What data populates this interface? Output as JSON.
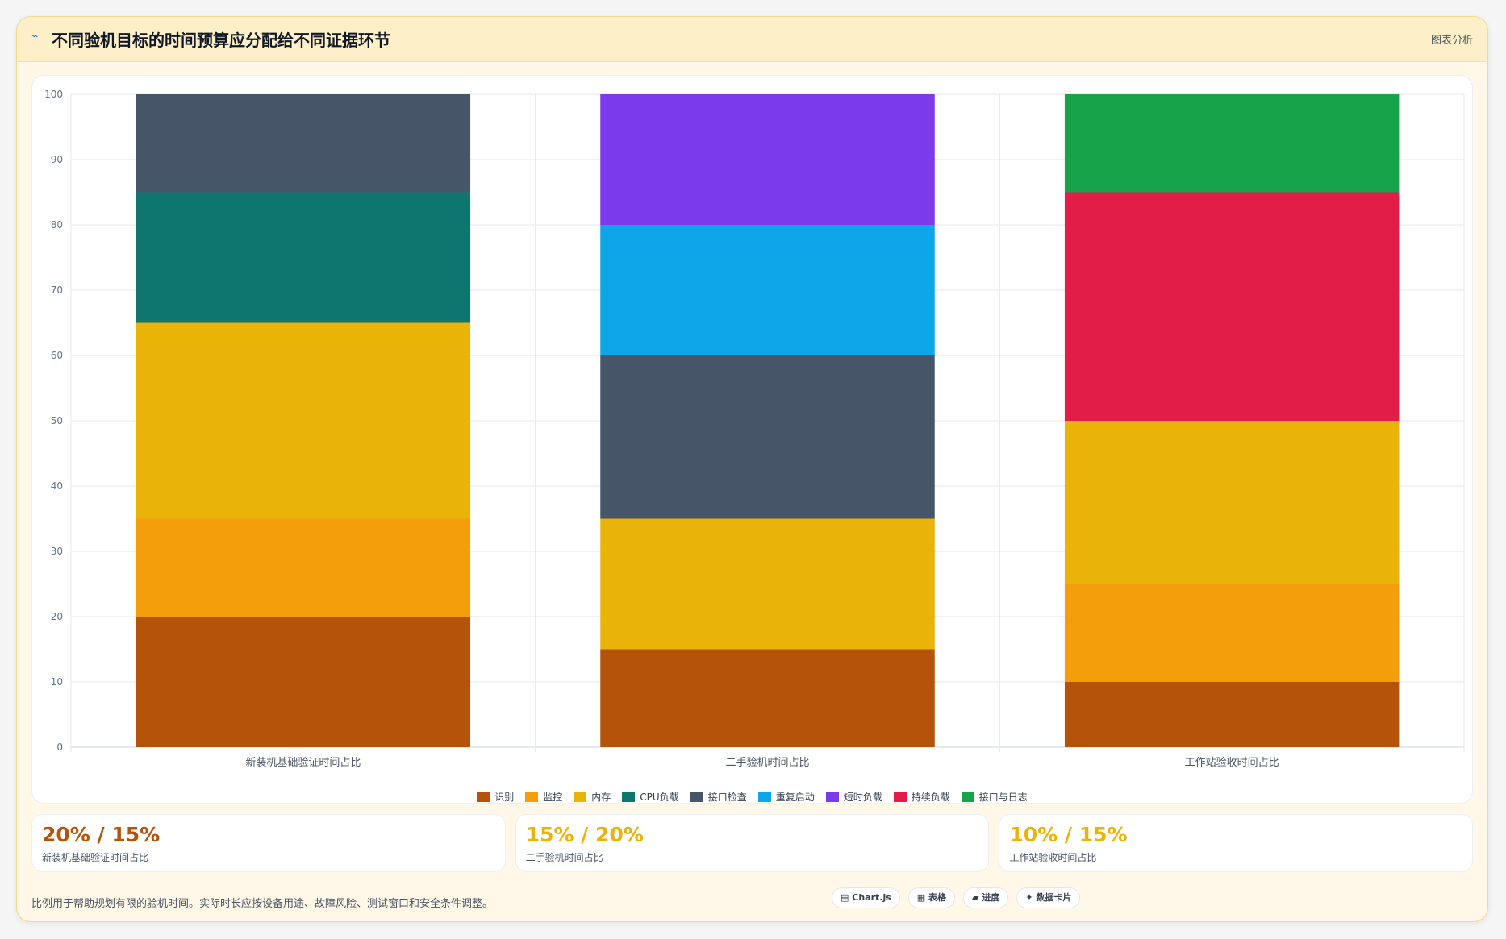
{
  "header": {
    "icon": "⌁",
    "title": "不同验机目标的时间预算应分配给不同证据环节",
    "action": "图表分析"
  },
  "chart_data": {
    "type": "bar",
    "stacked": true,
    "categories": [
      "新装机基础验证时间占比",
      "二手验机时间占比",
      "工作站验收时间占比"
    ],
    "ylim": [
      0,
      100
    ],
    "yticks": [
      0,
      10,
      20,
      30,
      40,
      50,
      60,
      70,
      80,
      90,
      100
    ],
    "grid": true,
    "legend_position": "bottom",
    "series": [
      {
        "name": "识别",
        "color": "#b45309",
        "values": [
          20,
          15,
          10
        ]
      },
      {
        "name": "监控",
        "color": "#f59e0b",
        "values": [
          15,
          0,
          15
        ]
      },
      {
        "name": "内存",
        "color": "#eab308",
        "values": [
          30,
          20,
          25
        ]
      },
      {
        "name": "CPU负载",
        "color": "#0f766e",
        "values": [
          20,
          0,
          0
        ]
      },
      {
        "name": "接口检查",
        "color": "#475569",
        "values": [
          15,
          25,
          0
        ]
      },
      {
        "name": "重复启动",
        "color": "#0ea5e9",
        "values": [
          0,
          20,
          0
        ]
      },
      {
        "name": "短时负载",
        "color": "#7c3aed",
        "values": [
          0,
          20,
          0
        ]
      },
      {
        "name": "持续负载",
        "color": "#e11d48",
        "values": [
          0,
          0,
          35
        ]
      },
      {
        "name": "接口与日志",
        "color": "#16a34a",
        "values": [
          0,
          0,
          15
        ]
      }
    ]
  },
  "stats": [
    {
      "value": "20% / 15%",
      "label": "新装机基础验证时间占比",
      "color": "#b45309"
    },
    {
      "value": "15% / 20%",
      "label": "二手验机时间占比",
      "color": "#eab308"
    },
    {
      "value": "10% / 15%",
      "label": "工作站验收时间占比",
      "color": "#eab308"
    }
  ],
  "footer": {
    "note": "比例用于帮助规划有限的验机时间。实际时长应按设备用途、故障风险、测试窗口和安全条件调整。",
    "badges": [
      {
        "icon": "▤",
        "label": "Chart.js"
      },
      {
        "icon": "▦",
        "label": "表格"
      },
      {
        "icon": "▰",
        "label": "进度"
      },
      {
        "icon": "✦",
        "label": "数据卡片"
      }
    ]
  }
}
